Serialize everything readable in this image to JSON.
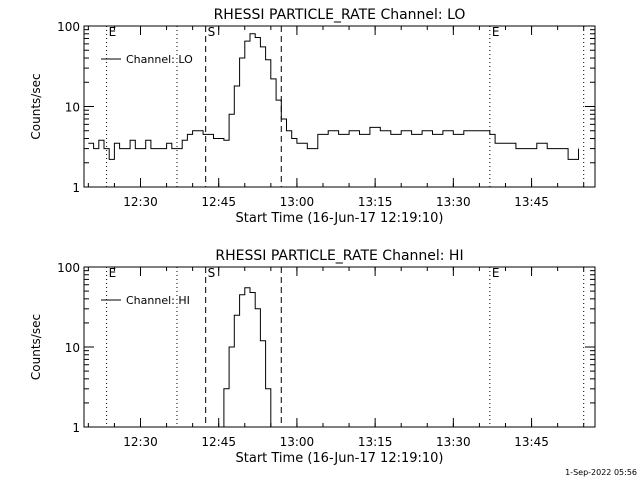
{
  "footer": {
    "timestamp": "1-Sep-2022 05:56"
  },
  "chart_data": [
    {
      "type": "line",
      "title": "RHESSI PARTICLE_RATE Channel: LO",
      "xlabel": "Start Time (16-Jun-17 12:19:10)",
      "ylabel": "Counts/sec",
      "yscale": "log",
      "ylim": [
        1,
        100
      ],
      "yticks": [
        {
          "value": 1,
          "label": "1"
        },
        {
          "value": 10,
          "label": "10"
        },
        {
          "value": 100,
          "label": "100"
        }
      ],
      "xlim": [
        "12:19:10",
        "13:57:10"
      ],
      "xticks": [
        "12:30",
        "12:45",
        "13:00",
        "13:15",
        "13:30",
        "13:45"
      ],
      "grid": false,
      "legend": {
        "position": "top-left",
        "entries": [
          "Channel: LO"
        ]
      },
      "markers": [
        {
          "time": "12:23:30",
          "label": "E",
          "style": "dotted"
        },
        {
          "time": "12:37:00",
          "label": "",
          "style": "dotted"
        },
        {
          "time": "12:42:30",
          "label": "S",
          "style": "dashed"
        },
        {
          "time": "12:57:00",
          "label": "",
          "style": "dashed"
        },
        {
          "time": "13:37:00",
          "label": "E",
          "style": "dotted"
        },
        {
          "time": "13:55:00",
          "label": "",
          "style": "dotted"
        }
      ],
      "series": [
        {
          "name": "Channel: LO",
          "x": [
            "12:20:00",
            "12:21:00",
            "12:22:00",
            "12:23:00",
            "12:24:00",
            "12:25:00",
            "12:26:00",
            "12:27:00",
            "12:28:00",
            "12:29:00",
            "12:30:00",
            "12:31:00",
            "12:32:00",
            "12:33:00",
            "12:34:00",
            "12:35:00",
            "12:36:00",
            "12:37:00",
            "12:38:00",
            "12:39:00",
            "12:40:00",
            "12:41:00",
            "12:42:00",
            "12:43:00",
            "12:44:00",
            "12:45:00",
            "12:46:00",
            "12:47:00",
            "12:48:00",
            "12:49:00",
            "12:50:00",
            "12:51:00",
            "12:52:00",
            "12:53:00",
            "12:54:00",
            "12:55:00",
            "12:56:00",
            "12:57:00",
            "12:58:00",
            "12:59:00",
            "13:00:00",
            "13:02:00",
            "13:04:00",
            "13:06:00",
            "13:08:00",
            "13:10:00",
            "13:12:00",
            "13:14:00",
            "13:16:00",
            "13:18:00",
            "13:20:00",
            "13:22:00",
            "13:24:00",
            "13:26:00",
            "13:28:00",
            "13:30:00",
            "13:32:00",
            "13:34:00",
            "13:36:00",
            "13:37:00",
            "13:38:00",
            "13:40:00",
            "13:42:00",
            "13:44:00",
            "13:46:00",
            "13:48:00",
            "13:50:00",
            "13:52:00",
            "13:54:00"
          ],
          "y": [
            3.5,
            3.0,
            3.8,
            3.0,
            2.2,
            3.5,
            3.0,
            3.0,
            3.8,
            3.0,
            3.0,
            3.8,
            3.0,
            3.0,
            3.0,
            3.5,
            3.0,
            3.0,
            3.8,
            4.5,
            5.0,
            5.0,
            4.5,
            4.5,
            4.0,
            4.0,
            3.8,
            8,
            18,
            40,
            65,
            80,
            72,
            55,
            38,
            22,
            12,
            7,
            5,
            4,
            3.5,
            3.0,
            4.5,
            5.0,
            4.5,
            5.0,
            4.5,
            5.5,
            5.0,
            4.5,
            5.0,
            4.5,
            5.0,
            4.5,
            5.0,
            4.5,
            5.0,
            5.0,
            5.0,
            4.5,
            3.5,
            3.5,
            3.0,
            3.0,
            3.5,
            3.0,
            3.0,
            2.2,
            3.0
          ]
        }
      ]
    },
    {
      "type": "line",
      "title": "RHESSI PARTICLE_RATE Channel: HI",
      "xlabel": "Start Time (16-Jun-17 12:19:10)",
      "ylabel": "Counts/sec",
      "yscale": "log",
      "ylim": [
        1,
        100
      ],
      "yticks": [
        {
          "value": 1,
          "label": "1"
        },
        {
          "value": 10,
          "label": "10"
        },
        {
          "value": 100,
          "label": "100"
        }
      ],
      "xlim": [
        "12:19:10",
        "13:57:10"
      ],
      "xticks": [
        "12:30",
        "12:45",
        "13:00",
        "13:15",
        "13:30",
        "13:45"
      ],
      "grid": false,
      "legend": {
        "position": "top-left",
        "entries": [
          "Channel: HI"
        ]
      },
      "markers": [
        {
          "time": "12:23:30",
          "label": "E",
          "style": "dotted"
        },
        {
          "time": "12:37:00",
          "label": "",
          "style": "dotted"
        },
        {
          "time": "12:42:30",
          "label": "S",
          "style": "dashed"
        },
        {
          "time": "12:57:00",
          "label": "",
          "style": "dashed"
        },
        {
          "time": "13:37:00",
          "label": "E",
          "style": "dotted"
        },
        {
          "time": "13:55:00",
          "label": "",
          "style": "dotted"
        }
      ],
      "series": [
        {
          "name": "Channel: HI",
          "x": [
            "12:45:00",
            "12:46:00",
            "12:47:00",
            "12:48:00",
            "12:49:00",
            "12:50:00",
            "12:51:00",
            "12:52:00",
            "12:53:00",
            "12:54:00",
            "12:55:00"
          ],
          "y": [
            1.0,
            3,
            10,
            25,
            45,
            55,
            48,
            30,
            12,
            3,
            1.0
          ]
        }
      ]
    }
  ]
}
